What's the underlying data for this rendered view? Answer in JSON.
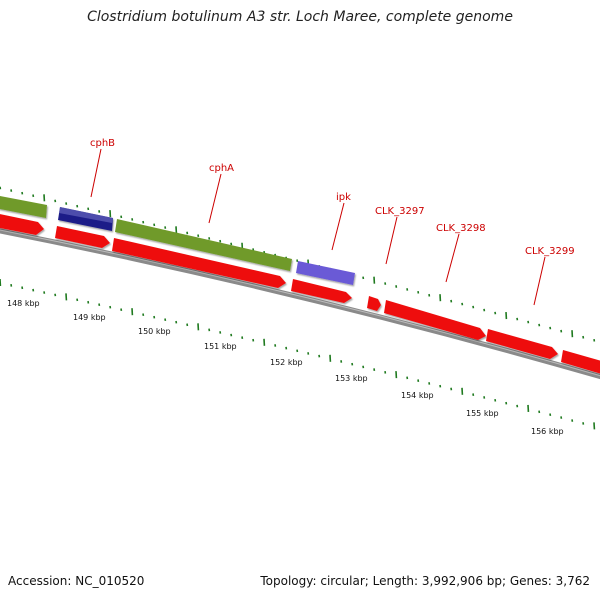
{
  "title": "Clostridium botulinum A3 str. Loch Maree, complete genome",
  "footer": {
    "accession": "Accession: NC_010520",
    "summary": "Topology: circular; Length: 3,992,906 bp; Genes: 3,762"
  },
  "colors": {
    "backbone": "#8a8a8a",
    "tick": "#1f7a1f",
    "label": "#cc0000",
    "gene_red": "#ee1111",
    "gene_olive": "#6f9a2a",
    "gene_navy": "#1c1c88",
    "gene_purple": "#6a5ad6"
  },
  "gene_labels": [
    "cphB",
    "cphA",
    "ipk",
    "CLK_3297",
    "CLK_3298",
    "CLK_3299"
  ],
  "scale_labels": [
    "148 kbp",
    "149 kbp",
    "150 kbp",
    "151 kbp",
    "152 kbp",
    "153 kbp",
    "154 kbp",
    "155 kbp",
    "156 kbp"
  ]
}
